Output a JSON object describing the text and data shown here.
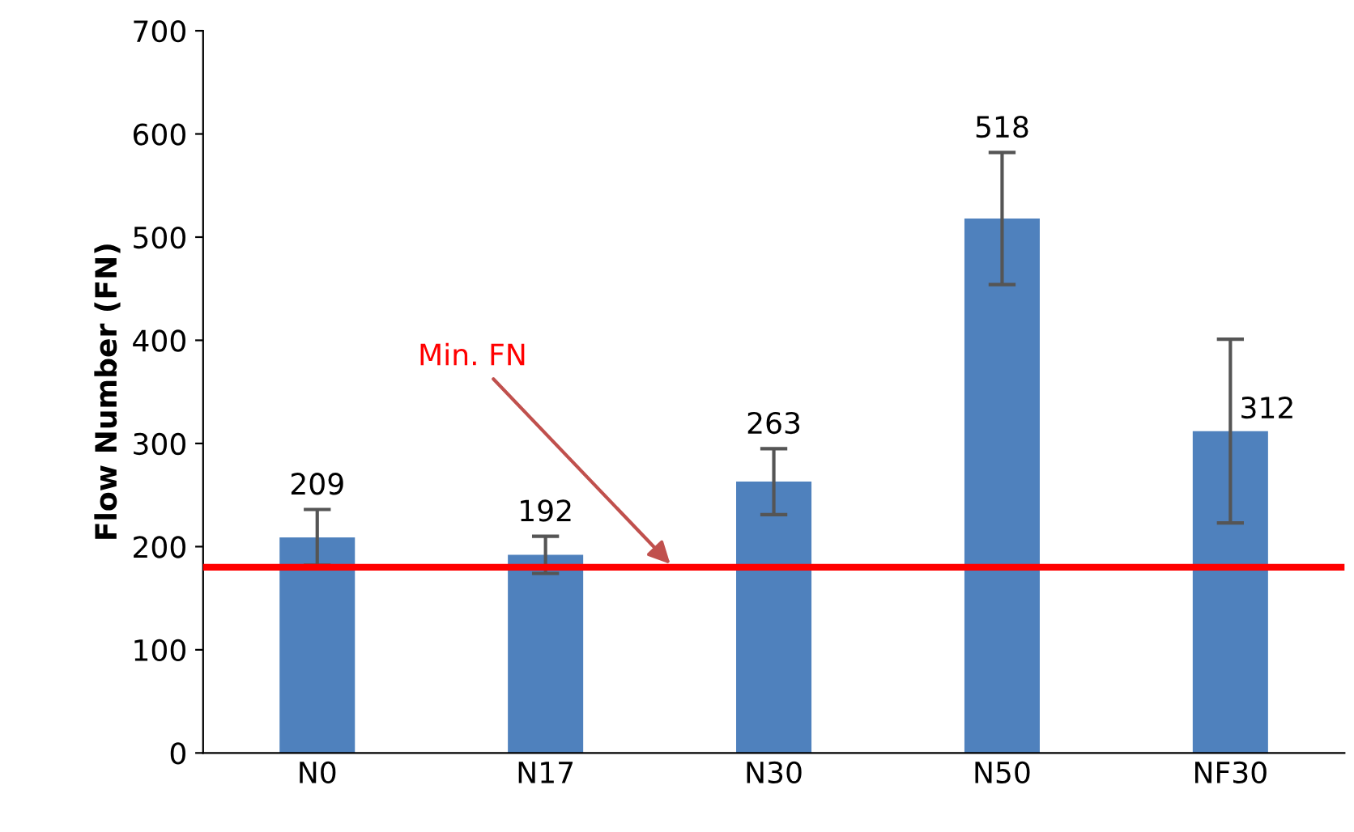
{
  "chart_data": {
    "type": "bar",
    "ylabel": "Flow Number (FN)",
    "categories": [
      "N0",
      "N17",
      "N30",
      "N50",
      "NF30"
    ],
    "values": [
      209,
      192,
      263,
      518,
      312
    ],
    "errors": [
      27,
      18,
      32,
      64,
      89
    ],
    "color": "#4f81bd",
    "data_labels": true,
    "ylim": [
      0,
      700
    ],
    "yticks": [
      0,
      100,
      200,
      300,
      400,
      500,
      600,
      700
    ],
    "grid": false,
    "ref_lines": [
      {
        "axis": "y",
        "value": 180,
        "label": "Min. FN",
        "color": "#ff0000"
      }
    ]
  }
}
